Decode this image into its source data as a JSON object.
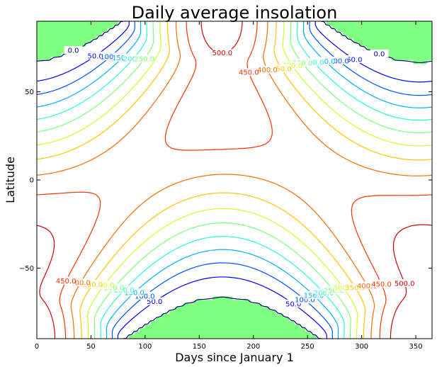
{
  "chart_data": {
    "type": "contour",
    "title": "Daily average insolation",
    "xlabel": "Days since January 1",
    "ylabel": "Latitude",
    "xlim": [
      0,
      365
    ],
    "ylim": [
      -90,
      90
    ],
    "x_ticks": [
      0,
      50,
      100,
      150,
      200,
      250,
      300,
      350
    ],
    "y_ticks": [
      -50,
      0,
      50
    ],
    "x_tick_labels": [
      "0",
      "50",
      "100",
      "150",
      "200",
      "250",
      "300",
      "350"
    ],
    "y_tick_labels": [
      "−50",
      "0",
      "50"
    ],
    "contour_levels": [
      0,
      50,
      100,
      150,
      200,
      250,
      300,
      350,
      400,
      450,
      500
    ],
    "level_labels": [
      "0.0",
      "50.0",
      "100.0",
      "150.0",
      "200.0",
      "250.0",
      "300.0",
      "350.0",
      "400.0",
      "450.0",
      "500.0"
    ],
    "colors": {
      "0": "#00007f",
      "50": "#0000ff",
      "100": "#0050ff",
      "150": "#00b0ff",
      "200": "#29ffce",
      "250": "#7dff7a",
      "300": "#ceff29",
      "350": "#ffc400",
      "400": "#ff6800",
      "450": "#ff3000",
      "500": "#d00000",
      "fill_zero": "#80ff80"
    },
    "polar_night_fill": true,
    "grid": false
  }
}
